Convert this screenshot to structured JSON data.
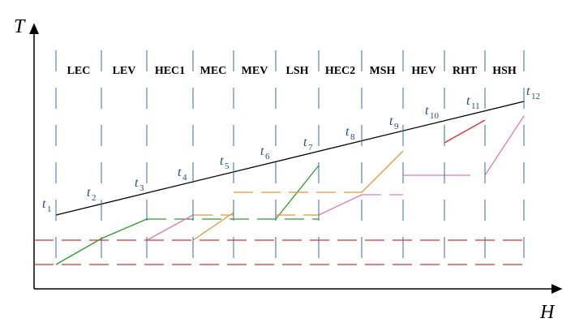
{
  "axes": {
    "y_label": "T",
    "x_label": "H"
  },
  "sections": [
    "LEC",
    "LEV",
    "HEC1",
    "MEC",
    "MEV",
    "LSH",
    "HEC2",
    "MSH",
    "HEV",
    "RHT",
    "HSH"
  ],
  "points": [
    {
      "symbol": "t",
      "index": "1"
    },
    {
      "symbol": "t",
      "index": "2"
    },
    {
      "symbol": "t",
      "index": "3"
    },
    {
      "symbol": "t",
      "index": "4"
    },
    {
      "symbol": "t",
      "index": "5"
    },
    {
      "symbol": "t",
      "index": "6"
    },
    {
      "symbol": "t",
      "index": "7"
    },
    {
      "symbol": "t",
      "index": "8"
    },
    {
      "symbol": "t",
      "index": "9"
    },
    {
      "symbol": "t",
      "index": "10"
    },
    {
      "symbol": "t",
      "index": "11"
    },
    {
      "symbol": "t",
      "index": "12"
    }
  ]
}
